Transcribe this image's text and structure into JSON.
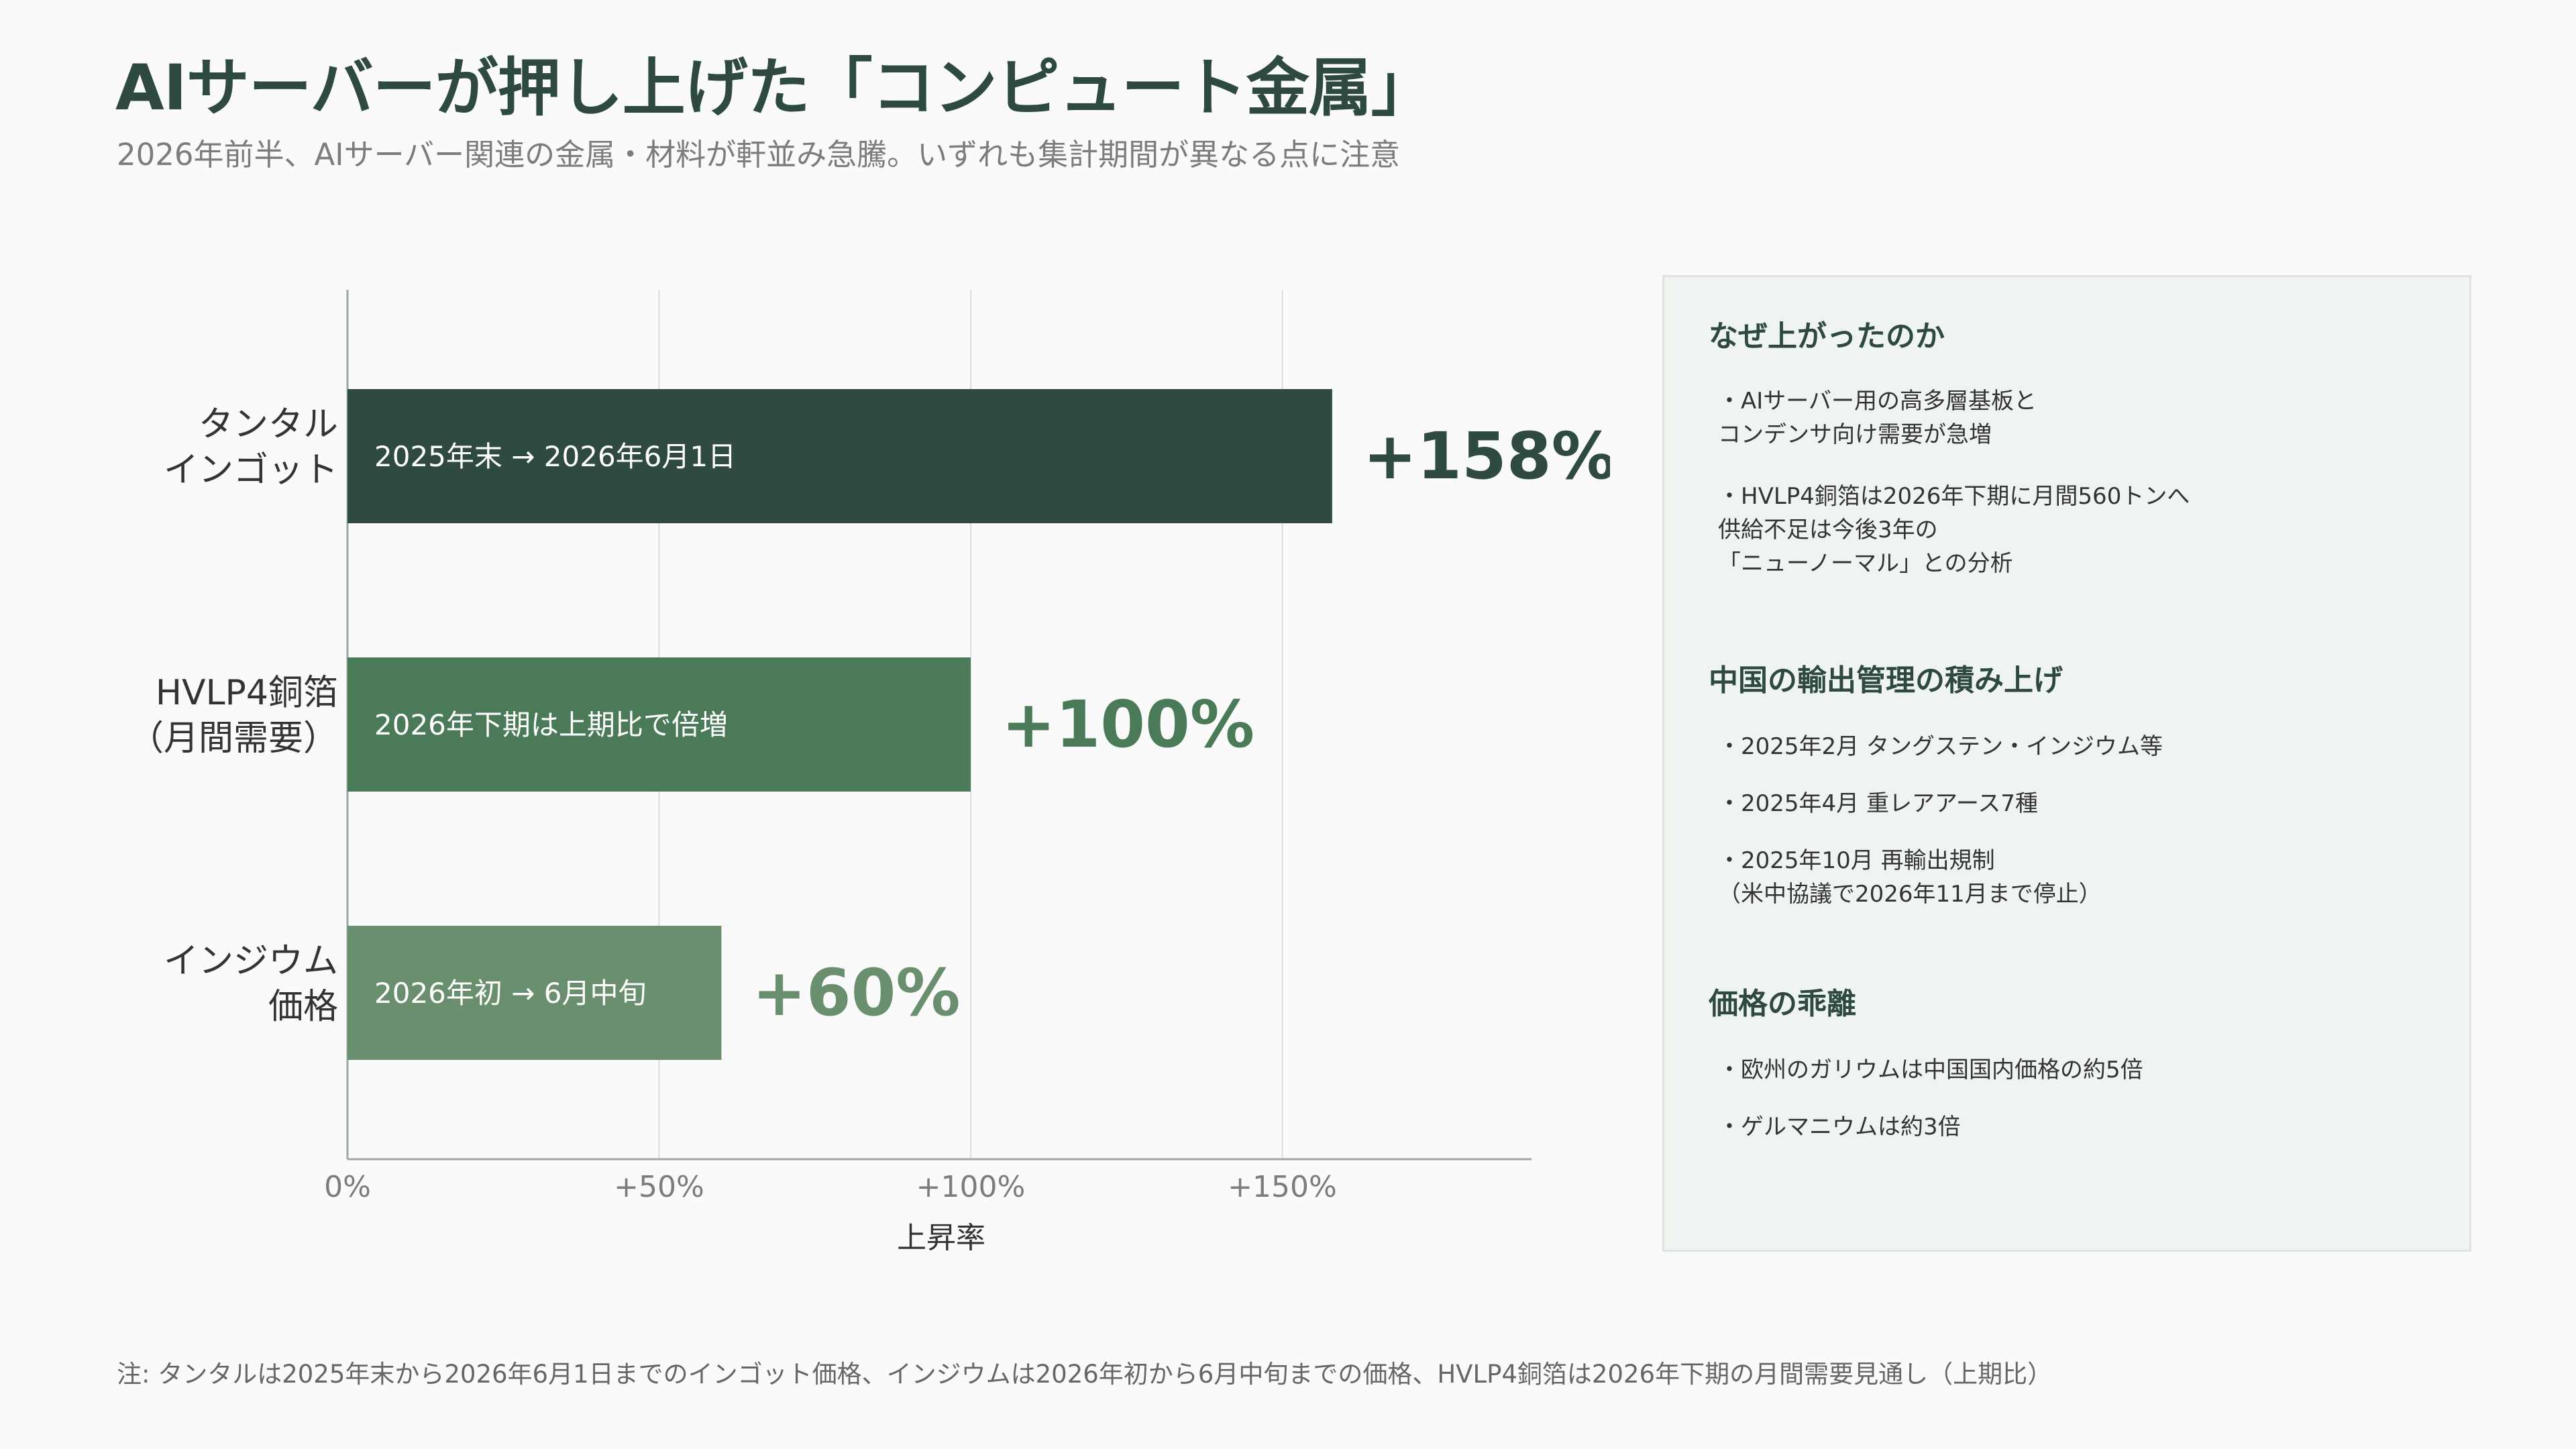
{
  "title": "AIサーバーが押し上げた「コンピュート金属」",
  "subtitle": "2026年前半、AIサーバー関連の金属・材料が軒並み急騰。いずれも集計期間が異なる点に注意",
  "chart_data": {
    "type": "bar",
    "orientation": "horizontal",
    "xlabel": "上昇率",
    "xlim": [
      0,
      190
    ],
    "x_ticks": [
      0,
      50,
      100,
      150
    ],
    "x_tick_labels": [
      "0%",
      "+50%",
      "+100%",
      "+150%"
    ],
    "grid": true,
    "bars": [
      {
        "category": "タンタル\nインゴット",
        "value": 158,
        "label": "+158%",
        "inner_text": "2025年末 → 2026年6月1日",
        "color": "#2f4b40"
      },
      {
        "category": "HVLP4銅箔\n（月間需要）",
        "value": 100,
        "label": "+100%",
        "inner_text": "2026年下期は上期比で倍増",
        "color": "#4a7a57"
      },
      {
        "category": "インジウム\n価格",
        "value": 60,
        "label": "+60%",
        "inner_text": "2026年初 → 6月中旬",
        "color": "#6a8f6e"
      }
    ]
  },
  "panel": {
    "sections": [
      {
        "heading": "なぜ上がったのか",
        "bullets": [
          "・AIサーバー用の高多層基板と\nコンデンサ向け需要が急増",
          "・HVLP4銅箔は2026年下期に月間560トンへ\n供給不足は今後3年の\n「ニューノーマル」との分析"
        ]
      },
      {
        "heading": "中国の輸出管理の積み上げ",
        "bullets": [
          "・2025年2月 タングステン・インジウム等",
          "・2025年4月 重レアアース7種",
          "・2025年10月 再輸出規制\n（米中協議で2026年11月まで停止）"
        ]
      },
      {
        "heading": "価格の乖離",
        "bullets": [
          "・欧州のガリウムは中国国内価格の約5倍",
          "・ゲルマニウムは約3倍"
        ]
      }
    ]
  },
  "footnote": "注: タンタルは2025年末から2026年6月1日までのインゴット価格、インジウムは2026年初から6月中旬までの価格、HVLP4銅箔は2026年下期の月間需要見通し（上期比）"
}
